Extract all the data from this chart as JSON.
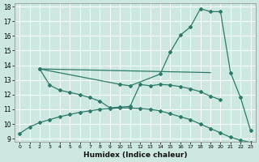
{
  "xlabel": "Humidex (Indice chaleur)",
  "background_color": "#cce8e0",
  "grid_color": "#ffffff",
  "line_color": "#2d7a6a",
  "xlim": [
    -0.5,
    23.5
  ],
  "ylim": [
    8.8,
    18.2
  ],
  "yticks": [
    9,
    10,
    11,
    12,
    13,
    14,
    15,
    16,
    17,
    18
  ],
  "xticks": [
    0,
    1,
    2,
    3,
    4,
    5,
    6,
    7,
    8,
    9,
    10,
    11,
    12,
    13,
    14,
    15,
    16,
    17,
    18,
    19,
    20,
    21,
    22,
    23
  ],
  "series1_x": [
    0,
    1,
    2,
    3,
    4,
    5,
    6,
    7,
    8,
    9,
    10,
    11,
    12,
    13,
    14,
    15,
    16,
    17,
    18,
    19,
    20,
    21,
    22,
    23
  ],
  "series1_y": [
    9.35,
    9.8,
    10.1,
    10.3,
    10.5,
    10.65,
    10.8,
    10.9,
    11.0,
    11.05,
    11.1,
    11.1,
    11.05,
    11.0,
    10.9,
    10.7,
    10.5,
    10.3,
    10.0,
    9.7,
    9.4,
    9.1,
    8.9,
    8.75
  ],
  "series2_x": [
    2,
    3,
    4,
    5,
    6,
    7,
    8,
    9,
    10,
    11,
    12,
    13,
    14,
    15,
    16,
    17,
    18,
    19,
    20
  ],
  "series2_y": [
    13.75,
    12.65,
    12.3,
    12.15,
    12.0,
    11.8,
    11.55,
    11.1,
    11.15,
    11.2,
    12.7,
    12.6,
    12.7,
    12.65,
    12.55,
    12.4,
    12.2,
    11.9,
    11.65
  ],
  "series3_x": [
    2,
    10,
    11,
    14,
    15,
    16,
    17,
    18,
    19,
    20,
    21,
    22,
    23
  ],
  "series3_y": [
    13.75,
    12.7,
    12.6,
    13.4,
    14.9,
    16.05,
    16.6,
    17.85,
    17.65,
    17.65,
    13.5,
    11.8,
    9.55
  ],
  "series4_x": [
    2,
    19
  ],
  "series4_y": [
    13.75,
    13.5
  ]
}
